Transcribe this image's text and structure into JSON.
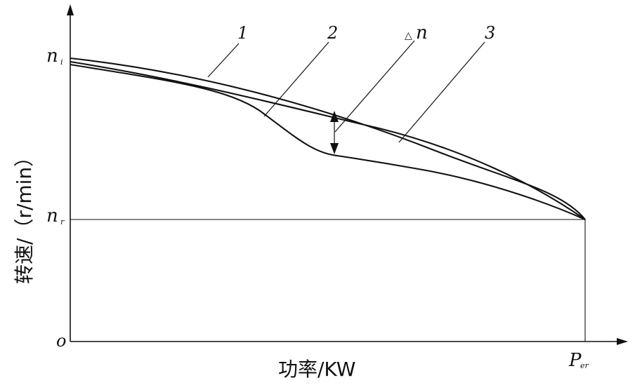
{
  "axes": {
    "x_label": "功率/KW",
    "y_label": "转速/（r/min）",
    "origin_label": "o"
  },
  "y_ticks": {
    "ni_main": "n",
    "ni_sub": "i",
    "nr_main": "n",
    "nr_sub": "r"
  },
  "x_ticks": {
    "per_main": "P",
    "per_sub": "er"
  },
  "curve_labels": {
    "c1": "1",
    "c2": "2",
    "delta_symbol": "△",
    "delta_var": "n",
    "c3": "3"
  }
}
